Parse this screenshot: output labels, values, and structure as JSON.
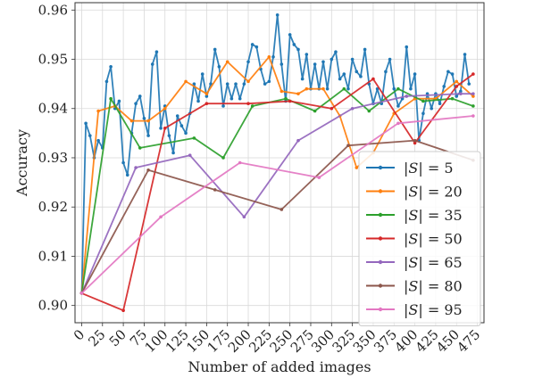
{
  "chart_data": {
    "type": "line",
    "title": "",
    "xlabel": "Number of added images",
    "ylabel": "Accuracy",
    "xlim": [
      -8,
      483
    ],
    "ylim": [
      0.8965,
      0.9615
    ],
    "xticks": [
      0,
      25,
      50,
      75,
      100,
      125,
      150,
      175,
      200,
      225,
      250,
      275,
      300,
      325,
      350,
      375,
      400,
      425,
      450,
      475
    ],
    "xtick_labels": [
      "0",
      "25",
      "50",
      "75",
      "100",
      "125",
      "150",
      "175",
      "200",
      "225",
      "250",
      "275",
      "300",
      "325",
      "350",
      "375",
      "400",
      "425",
      "450",
      "475"
    ],
    "yticks": [
      0.9,
      0.91,
      0.92,
      0.93,
      0.94,
      0.95,
      0.96
    ],
    "ytick_labels": [
      "0.90",
      "0.91",
      "0.92",
      "0.93",
      "0.94",
      "0.95",
      "0.96"
    ],
    "grid": true,
    "legend_position": "lower-right",
    "series": [
      {
        "name": "|S| = 5",
        "legend_value": "5",
        "color": "#1f77b4",
        "x": [
          0,
          5,
          10,
          15,
          20,
          25,
          30,
          35,
          40,
          45,
          50,
          55,
          60,
          65,
          70,
          75,
          80,
          85,
          90,
          95,
          100,
          105,
          110,
          115,
          120,
          125,
          130,
          135,
          140,
          145,
          150,
          155,
          160,
          165,
          170,
          175,
          180,
          185,
          190,
          195,
          200,
          205,
          210,
          215,
          220,
          225,
          230,
          235,
          240,
          245,
          250,
          255,
          260,
          265,
          270,
          275,
          280,
          285,
          290,
          295,
          300,
          305,
          310,
          315,
          320,
          325,
          330,
          335,
          340,
          345,
          350,
          355,
          360,
          365,
          370,
          375,
          380,
          385,
          390,
          395,
          400,
          405,
          410,
          415,
          420,
          425,
          430,
          435,
          440,
          445,
          450,
          455,
          460,
          465
        ],
        "y": [
          0.9025,
          0.937,
          0.9345,
          0.93,
          0.9335,
          0.932,
          0.9455,
          0.9485,
          0.94,
          0.9415,
          0.929,
          0.9265,
          0.935,
          0.941,
          0.9425,
          0.938,
          0.9345,
          0.949,
          0.9515,
          0.936,
          0.9405,
          0.9345,
          0.931,
          0.9385,
          0.9365,
          0.935,
          0.939,
          0.945,
          0.9415,
          0.947,
          0.9425,
          0.945,
          0.952,
          0.9485,
          0.9405,
          0.945,
          0.942,
          0.945,
          0.942,
          0.945,
          0.9495,
          0.953,
          0.9525,
          0.948,
          0.945,
          0.9455,
          0.9505,
          0.959,
          0.949,
          0.9415,
          0.955,
          0.953,
          0.952,
          0.946,
          0.951,
          0.944,
          0.949,
          0.944,
          0.9495,
          0.944,
          0.95,
          0.9515,
          0.946,
          0.947,
          0.944,
          0.95,
          0.9475,
          0.9465,
          0.952,
          0.945,
          0.941,
          0.944,
          0.941,
          0.9475,
          0.95,
          0.944,
          0.9405,
          0.942,
          0.9525,
          0.944,
          0.947,
          0.9335,
          0.939,
          0.943,
          0.94,
          0.943,
          0.941,
          0.9445,
          0.9475,
          0.947,
          0.9425,
          0.9435,
          0.951,
          0.945
        ]
      },
      {
        "name": "|S| = 20",
        "legend_value": "20",
        "color": "#ff7f0e",
        "x": [
          0,
          20,
          40,
          60,
          80,
          100,
          125,
          150,
          175,
          200,
          225,
          240,
          260,
          270,
          290,
          310,
          330,
          350,
          375,
          400,
          425,
          450,
          470
        ],
        "y": [
          0.9025,
          0.9395,
          0.9405,
          0.9375,
          0.9375,
          0.94,
          0.9455,
          0.943,
          0.9495,
          0.9455,
          0.9505,
          0.9435,
          0.943,
          0.944,
          0.944,
          0.9385,
          0.928,
          0.931,
          0.939,
          0.942,
          0.942,
          0.9455,
          0.9425
        ]
      },
      {
        "name": "|S| = 35",
        "legend_value": "35",
        "color": "#2ca02c",
        "x": [
          0,
          35,
          70,
          135,
          170,
          205,
          245,
          280,
          315,
          345,
          380,
          410,
          445,
          470
        ],
        "y": [
          0.9025,
          0.942,
          0.932,
          0.934,
          0.93,
          0.9405,
          0.942,
          0.9395,
          0.944,
          0.9395,
          0.944,
          0.9415,
          0.942,
          0.9405
        ]
      },
      {
        "name": "|S| = 50",
        "legend_value": "50",
        "color": "#d62728",
        "x": [
          0,
          50,
          100,
          150,
          200,
          250,
          300,
          350,
          400,
          450,
          470
        ],
        "y": [
          0.9025,
          0.899,
          0.936,
          0.941,
          0.941,
          0.9415,
          0.94,
          0.946,
          0.933,
          0.9445,
          0.947
        ]
      },
      {
        "name": "|S| = 65",
        "legend_value": "65",
        "color": "#9467bd",
        "x": [
          0,
          65,
          130,
          195,
          260,
          325,
          390,
          455,
          470
        ],
        "y": [
          0.9025,
          0.928,
          0.9305,
          0.918,
          0.9335,
          0.94,
          0.9425,
          0.943,
          0.943
        ]
      },
      {
        "name": "|S| = 80",
        "legend_value": "80",
        "color": "#8c564b",
        "x": [
          0,
          80,
          160,
          240,
          320,
          400,
          470
        ],
        "y": [
          0.9025,
          0.9275,
          0.9235,
          0.9195,
          0.9325,
          0.9335,
          0.9295
        ]
      },
      {
        "name": "|S| = 95",
        "legend_value": "95",
        "color": "#e377c2",
        "x": [
          0,
          95,
          190,
          285,
          380,
          470
        ],
        "y": [
          0.9025,
          0.918,
          0.929,
          0.926,
          0.937,
          0.9385
        ]
      }
    ]
  }
}
